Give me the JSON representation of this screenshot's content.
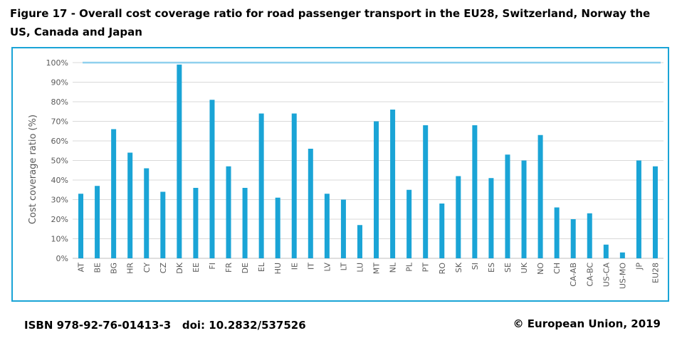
{
  "figure": {
    "title": "Figure 17 - Overall cost coverage ratio for road passenger transport in the EU28, Switzerland, Norway the US, Canada and Japan"
  },
  "footer": {
    "isbn": "ISBN 978-92-76-01413-3",
    "doi": "doi: 10.2832/537526",
    "copyright": "© European Union, 2019"
  },
  "chart_data": {
    "type": "bar",
    "title": "",
    "xlabel": "",
    "ylabel": "Cost coverage ratio (%)",
    "ylim": [
      0,
      100
    ],
    "yticks": [
      "0%",
      "10%",
      "20%",
      "30%",
      "40%",
      "50%",
      "60%",
      "70%",
      "80%",
      "90%",
      "100%"
    ],
    "ytick_values": [
      0,
      10,
      20,
      30,
      40,
      50,
      60,
      70,
      80,
      90,
      100
    ],
    "reference_line": 100,
    "grid": true,
    "bar_color": "#1aa4d6",
    "reference_line_color": "#8fd0ee",
    "frame_color": "#1aa4d6",
    "categories": [
      "AT",
      "BE",
      "BG",
      "HR",
      "CY",
      "CZ",
      "DK",
      "EE",
      "FI",
      "FR",
      "DE",
      "EL",
      "HU",
      "IE",
      "IT",
      "LV",
      "LT",
      "LU",
      "MT",
      "NL",
      "PL",
      "PT",
      "RO",
      "SK",
      "SI",
      "ES",
      "SE",
      "UK",
      "NO",
      "CH",
      "CA-AB",
      "CA-BC",
      "US-CA",
      "US-MO",
      "JP",
      "EU28"
    ],
    "values": [
      33,
      37,
      66,
      54,
      46,
      34,
      99,
      36,
      81,
      47,
      36,
      74,
      31,
      74,
      56,
      33,
      30,
      17,
      70,
      76,
      35,
      68,
      28,
      42,
      68,
      41,
      53,
      50,
      63,
      26,
      20,
      23,
      7,
      3,
      50,
      47
    ]
  }
}
